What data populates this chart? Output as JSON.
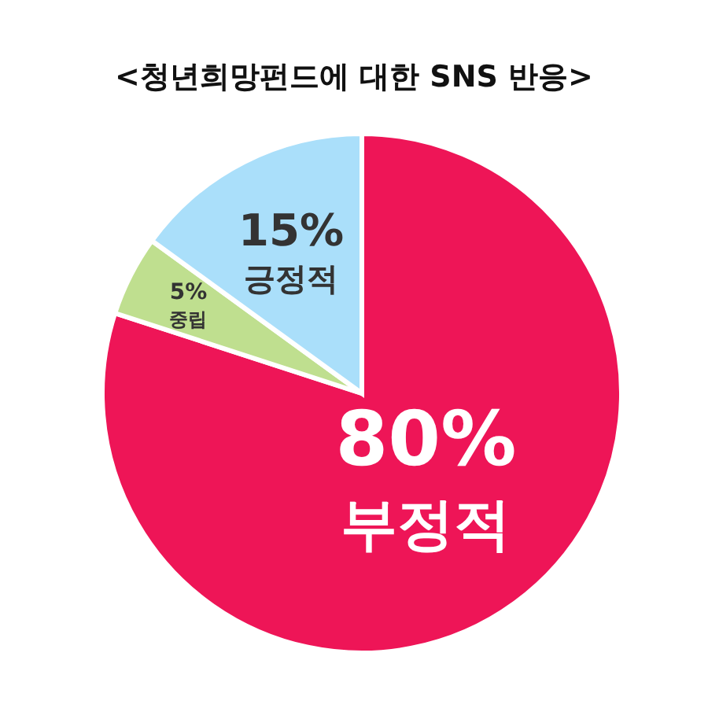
{
  "chart_data": {
    "type": "pie",
    "title": "<청년희망펀드에 대한 SNS 반응>",
    "categories": [
      "부정적",
      "중립",
      "긍정적"
    ],
    "values": [
      80,
      5,
      15
    ],
    "value_labels": [
      "80%",
      "5%",
      "15%"
    ],
    "colors": [
      "#ee1557",
      "#bfdf8f",
      "#aadffa"
    ],
    "legend": false
  }
}
